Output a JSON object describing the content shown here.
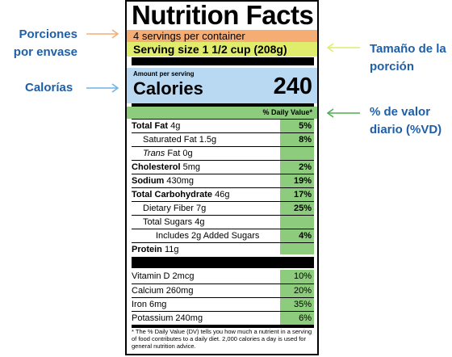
{
  "callouts": {
    "servings": [
      "Porciones",
      "por envase"
    ],
    "calories": "Calorías",
    "serving_size": [
      "Tamaño de la",
      "porción"
    ],
    "daily_value": [
      "% de valor",
      "diario (%VD)"
    ]
  },
  "colors": {
    "callout_text": "#1f5fa8",
    "servings_band": "#f5ad74",
    "serving_size_band": "#dfec6c",
    "calories_band": "#b9d8f1",
    "daily_value_band": "#8ccc7c",
    "arrow_orange": "#f5ad74",
    "arrow_yellow": "#dfec6c",
    "arrow_blue": "#6cb4e6",
    "arrow_green": "#4caf50"
  },
  "label": {
    "title": "Nutrition Facts",
    "servings": "4 servings per container",
    "serving_size": "Serving size 1 1/2 cup (208g)",
    "amount_per_serving": "Amount per serving",
    "calories_label": "Calories",
    "calories_value": "240",
    "dv_header": "% Daily Value*",
    "nutrients": [
      {
        "name": "Total Fat",
        "amount": "4g",
        "dv": "5%"
      },
      {
        "name": "Saturated Fat",
        "amount": "1.5g",
        "dv": "8%"
      },
      {
        "name": "Trans",
        "amount": "Fat 0g",
        "dv": ""
      },
      {
        "name": "Cholesterol",
        "amount": "5mg",
        "dv": "2%"
      },
      {
        "name": "Sodium",
        "amount": "430mg",
        "dv": "19%"
      },
      {
        "name": "Total Carbohydrate",
        "amount": "46g",
        "dv": "17%"
      },
      {
        "name": "Dietary Fiber",
        "amount": "7g",
        "dv": "25%"
      },
      {
        "name": "Total Sugars",
        "amount": "4g",
        "dv": ""
      },
      {
        "name": "Includes 2g Added Sugars",
        "amount": "",
        "dv": "4%"
      },
      {
        "name": "Protein",
        "amount": "11g",
        "dv": ""
      }
    ],
    "vitamins": [
      {
        "name": "Vitamin D",
        "amount": "2mcg",
        "dv": "10%"
      },
      {
        "name": "Calcium",
        "amount": "260mg",
        "dv": "20%"
      },
      {
        "name": "Iron",
        "amount": "6mg",
        "dv": "35%"
      },
      {
        "name": "Potassium",
        "amount": "240mg",
        "dv": "6%"
      }
    ],
    "footnote": "* The % Daily Value (DV) tells you how much a nutrient in a serving of food contributes to a daily diet. 2,000 calories a day is used for general nutrition advice."
  }
}
